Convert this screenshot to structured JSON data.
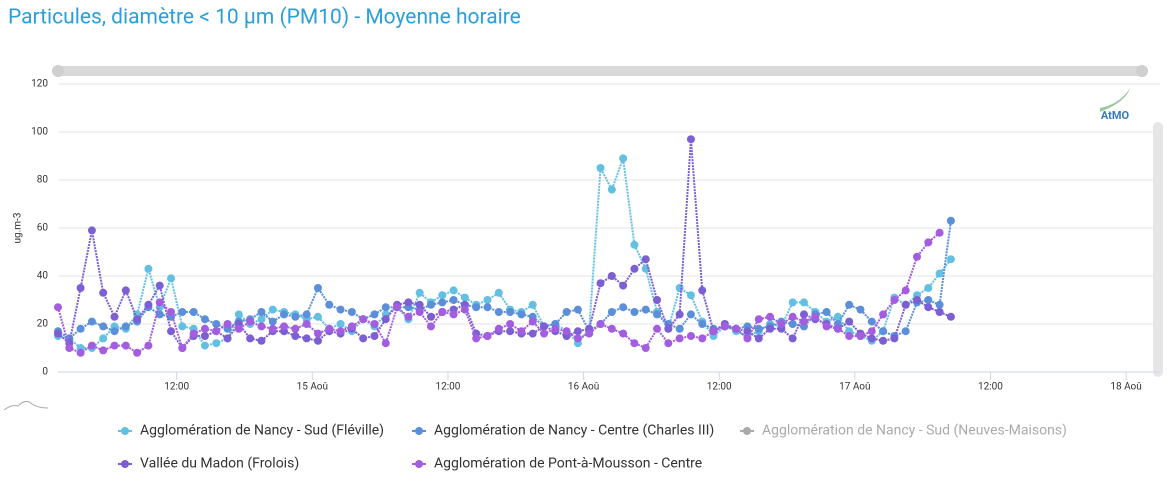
{
  "chart_data": {
    "type": "line",
    "title": "Particules, diamètre < 10 µm (PM10) - Moyenne horaire",
    "y_label": "ug.m-3",
    "logo": "AtMO",
    "xlim": [
      1.5,
      99
    ],
    "xticks": [
      {
        "value": 12,
        "label": "12:00"
      },
      {
        "value": 24,
        "label": "15 Aoû"
      },
      {
        "value": 36,
        "label": "12:00"
      },
      {
        "value": 48,
        "label": "16 Aoû"
      },
      {
        "value": 60,
        "label": "12:00"
      },
      {
        "value": 72,
        "label": "17 Aoû"
      },
      {
        "value": 84,
        "label": "12:00"
      },
      {
        "value": 96,
        "label": "18 Aoû"
      }
    ],
    "ylim": [
      0,
      120
    ],
    "yticks": [
      0,
      20,
      40,
      60,
      80,
      100,
      120
    ],
    "x": [
      1.5,
      2.5,
      3.5,
      4.5,
      5.5,
      6.5,
      7.5,
      8.5,
      9.5,
      10.5,
      11.5,
      12.5,
      13.5,
      14.5,
      15.5,
      16.5,
      17.5,
      18.5,
      19.5,
      20.5,
      21.5,
      22.5,
      23.5,
      24.5,
      25.5,
      26.5,
      27.5,
      28.5,
      29.5,
      30.5,
      31.5,
      32.5,
      33.5,
      34.5,
      35.5,
      36.5,
      37.5,
      38.5,
      39.5,
      40.5,
      41.5,
      42.5,
      43.5,
      44.5,
      45.5,
      46.5,
      47.5,
      48.5,
      49.5,
      50.5,
      51.5,
      52.5,
      53.5,
      54.5,
      55.5,
      56.5,
      57.5,
      58.5,
      59.5,
      60.5,
      61.5,
      62.5,
      63.5,
      64.5,
      65.5,
      66.5,
      67.5,
      68.5,
      69.5,
      70.5,
      71.5,
      72.5,
      73.5,
      74.5,
      75.5,
      76.5,
      77.5,
      78.5,
      79.5,
      80.5
    ],
    "series": [
      {
        "name": "Agglomération de Nancy - Sud (Fléville)",
        "color": "#64c0e2",
        "visible": true,
        "values": [
          15,
          14,
          10,
          10,
          14,
          19,
          18,
          24,
          43,
          27,
          39,
          19,
          18,
          11,
          12,
          14,
          24,
          20,
          22,
          26,
          25,
          24,
          22,
          23,
          18,
          20,
          17,
          22,
          19,
          24,
          27,
          22,
          33,
          29,
          32,
          34,
          31,
          28,
          30,
          33,
          26,
          25,
          28,
          19,
          20,
          17,
          12,
          18,
          85,
          76,
          89,
          53,
          43,
          25,
          18,
          35,
          32,
          21,
          15,
          19,
          17,
          15,
          17,
          20,
          19,
          29,
          29,
          25,
          21,
          23,
          17,
          15,
          13,
          17,
          31,
          28,
          32,
          35,
          41,
          47
        ]
      },
      {
        "name": "Agglomération de Nancy - Centre (Charles III)",
        "color": "#5b8fd9",
        "visible": true,
        "values": [
          17,
          14,
          18,
          21,
          19,
          17,
          19,
          21,
          27,
          24,
          23,
          25,
          25,
          22,
          20,
          18,
          21,
          22,
          25,
          21,
          24,
          23,
          24,
          35,
          28,
          26,
          25,
          22,
          24,
          27,
          27,
          27,
          26,
          28,
          29,
          30,
          28,
          27,
          27,
          25,
          25,
          24,
          23,
          19,
          20,
          25,
          26,
          17,
          20,
          25,
          27,
          25,
          26,
          24,
          20,
          18,
          24,
          20,
          18,
          19,
          18,
          19,
          18,
          19,
          21,
          20,
          19,
          24,
          25,
          20,
          28,
          26,
          21,
          17,
          15,
          17,
          29,
          30,
          28,
          63
        ]
      },
      {
        "name": "Agglomération de Nancy - Sud (Neuves-Maisons)",
        "color": "#5a55b8",
        "visible": false
      },
      {
        "name": "Vallée du Madon (Frolois)",
        "color": "#7c5fd2",
        "visible": true,
        "values": [
          16,
          12,
          35,
          59,
          33,
          23,
          34,
          22,
          28,
          36,
          17,
          10,
          15,
          15,
          17,
          14,
          20,
          14,
          13,
          17,
          17,
          15,
          14,
          13,
          17,
          16,
          18,
          14,
          15,
          22,
          28,
          29,
          28,
          23,
          25,
          26,
          28,
          16,
          15,
          17,
          17,
          16,
          16,
          19,
          17,
          15,
          17,
          18,
          37,
          40,
          36,
          43,
          47,
          30,
          18,
          24,
          97,
          34,
          17,
          20,
          18,
          17,
          14,
          18,
          18,
          14,
          24,
          22,
          20,
          18,
          21,
          16,
          14,
          13,
          14,
          28,
          30,
          27,
          25,
          23
        ]
      },
      {
        "name": "Agglomération de Pont-à-Mousson - Centre",
        "color": "#a35ee0",
        "visible": true,
        "values": [
          27,
          10,
          8,
          11,
          9,
          11,
          11,
          8,
          11,
          29,
          25,
          10,
          16,
          18,
          17,
          20,
          18,
          21,
          19,
          18,
          19,
          18,
          20,
          16,
          18,
          17,
          19,
          22,
          20,
          12,
          27,
          23,
          25,
          19,
          25,
          24,
          26,
          14,
          15,
          18,
          20,
          17,
          21,
          16,
          18,
          17,
          14,
          16,
          20,
          18,
          16,
          12,
          10,
          18,
          12,
          14,
          15,
          14,
          17,
          19,
          18,
          14,
          22,
          23,
          20,
          23,
          21,
          23,
          19,
          18,
          15,
          15,
          17,
          24,
          30,
          34,
          48,
          54,
          58,
          null
        ]
      }
    ]
  }
}
